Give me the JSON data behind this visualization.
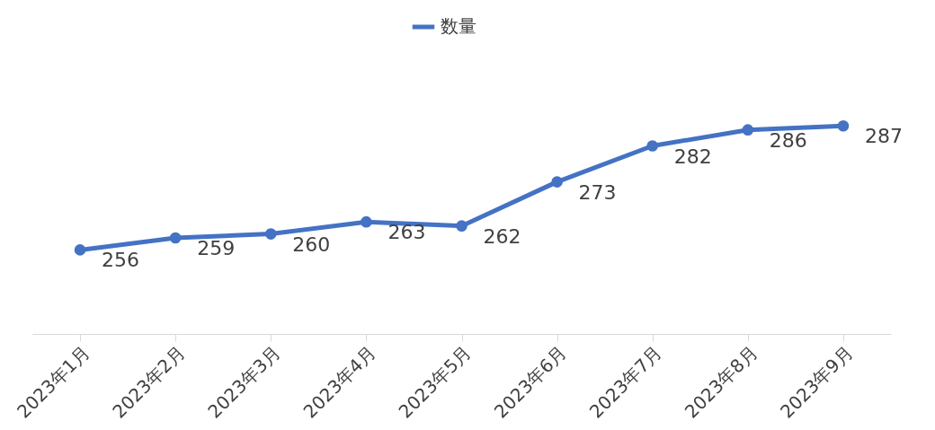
{
  "chart_data": {
    "type": "line",
    "categories": [
      "2023年1月",
      "2023年2月",
      "2023年3月",
      "2023年4月",
      "2023年5月",
      "2023年6月",
      "2023年7月",
      "2023年8月",
      "2023年9月"
    ],
    "series": [
      {
        "name": "数量",
        "color": "#4472c4",
        "values": [
          256,
          259,
          260,
          263,
          262,
          273,
          282,
          286,
          287
        ]
      }
    ],
    "tick_labels": "x",
    "data_labels": true,
    "legend": "top",
    "grid": false,
    "marker": "circle",
    "line_style": "solid"
  }
}
